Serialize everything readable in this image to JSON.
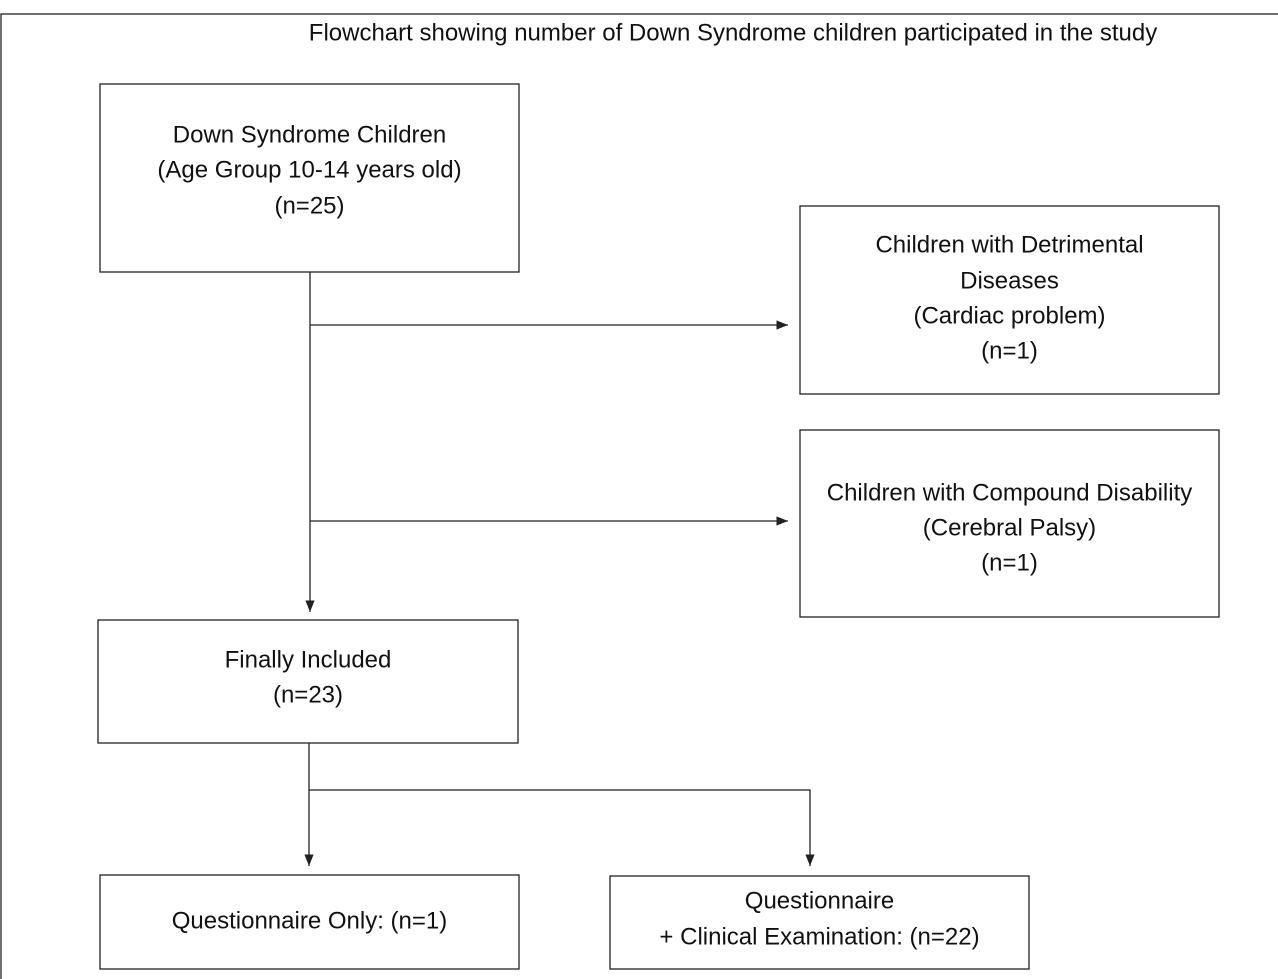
{
  "title": "Flowchart showing number of Down Syndrome children participated in the study",
  "nodes": [
    {
      "lines": [
        "Down Syndrome Children",
        "(Age Group 10-14 years old)",
        "(n=25)"
      ]
    },
    {
      "lines": [
        "Children with Detrimental",
        "Diseases",
        "(Cardiac problem)",
        "(n=1)"
      ]
    },
    {
      "lines": [
        "Children with Compound Disability",
        "(Cerebral Palsy)",
        "(n=1)"
      ]
    },
    {
      "lines": [
        "Finally Included",
        "(n=23)"
      ]
    },
    {
      "lines": [
        "Questionnaire Only: (n=1)"
      ]
    },
    {
      "lines": [
        "Questionnaire",
        "+ Clinical Examination: (n=22)"
      ]
    }
  ]
}
